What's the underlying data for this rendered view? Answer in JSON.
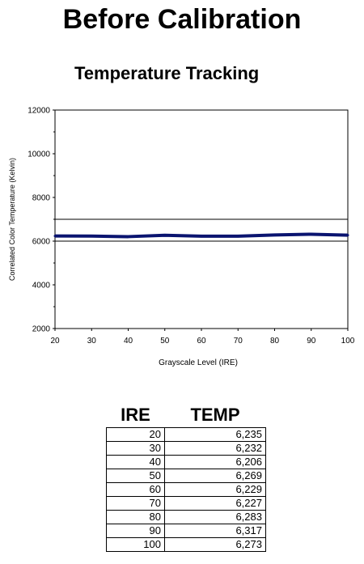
{
  "page_title": "Before Calibration",
  "chart_title": "Temperature Tracking",
  "colors": {
    "series_line": "#0a1470",
    "reference_line": "#000000"
  },
  "chart_data": {
    "type": "line",
    "x": [
      20,
      30,
      40,
      50,
      60,
      70,
      80,
      90,
      100
    ],
    "series": [
      {
        "values": [
          6235,
          6232,
          6206,
          6269,
          6229,
          6227,
          6283,
          6317,
          6273
        ]
      }
    ],
    "reference_lines": [
      6000,
      7000
    ],
    "xlabel": "Grayscale Level (IRE)",
    "ylabel": "Correlated Color Temperature (Kelvin)",
    "xlim": [
      20,
      100
    ],
    "ylim": [
      2000,
      12000
    ],
    "x_ticks": [
      "20",
      "30",
      "40",
      "50",
      "60",
      "70",
      "80",
      "90",
      "100"
    ],
    "y_ticks": [
      "2000",
      "4000",
      "6000",
      "8000",
      "10000",
      "12000"
    ],
    "grid": false
  },
  "table": {
    "headers": [
      "IRE",
      "TEMP"
    ],
    "rows": [
      [
        "20",
        "6,235"
      ],
      [
        "30",
        "6,232"
      ],
      [
        "40",
        "6,206"
      ],
      [
        "50",
        "6,269"
      ],
      [
        "60",
        "6,229"
      ],
      [
        "70",
        "6,227"
      ],
      [
        "80",
        "6,283"
      ],
      [
        "90",
        "6,317"
      ],
      [
        "100",
        "6,273"
      ]
    ]
  }
}
